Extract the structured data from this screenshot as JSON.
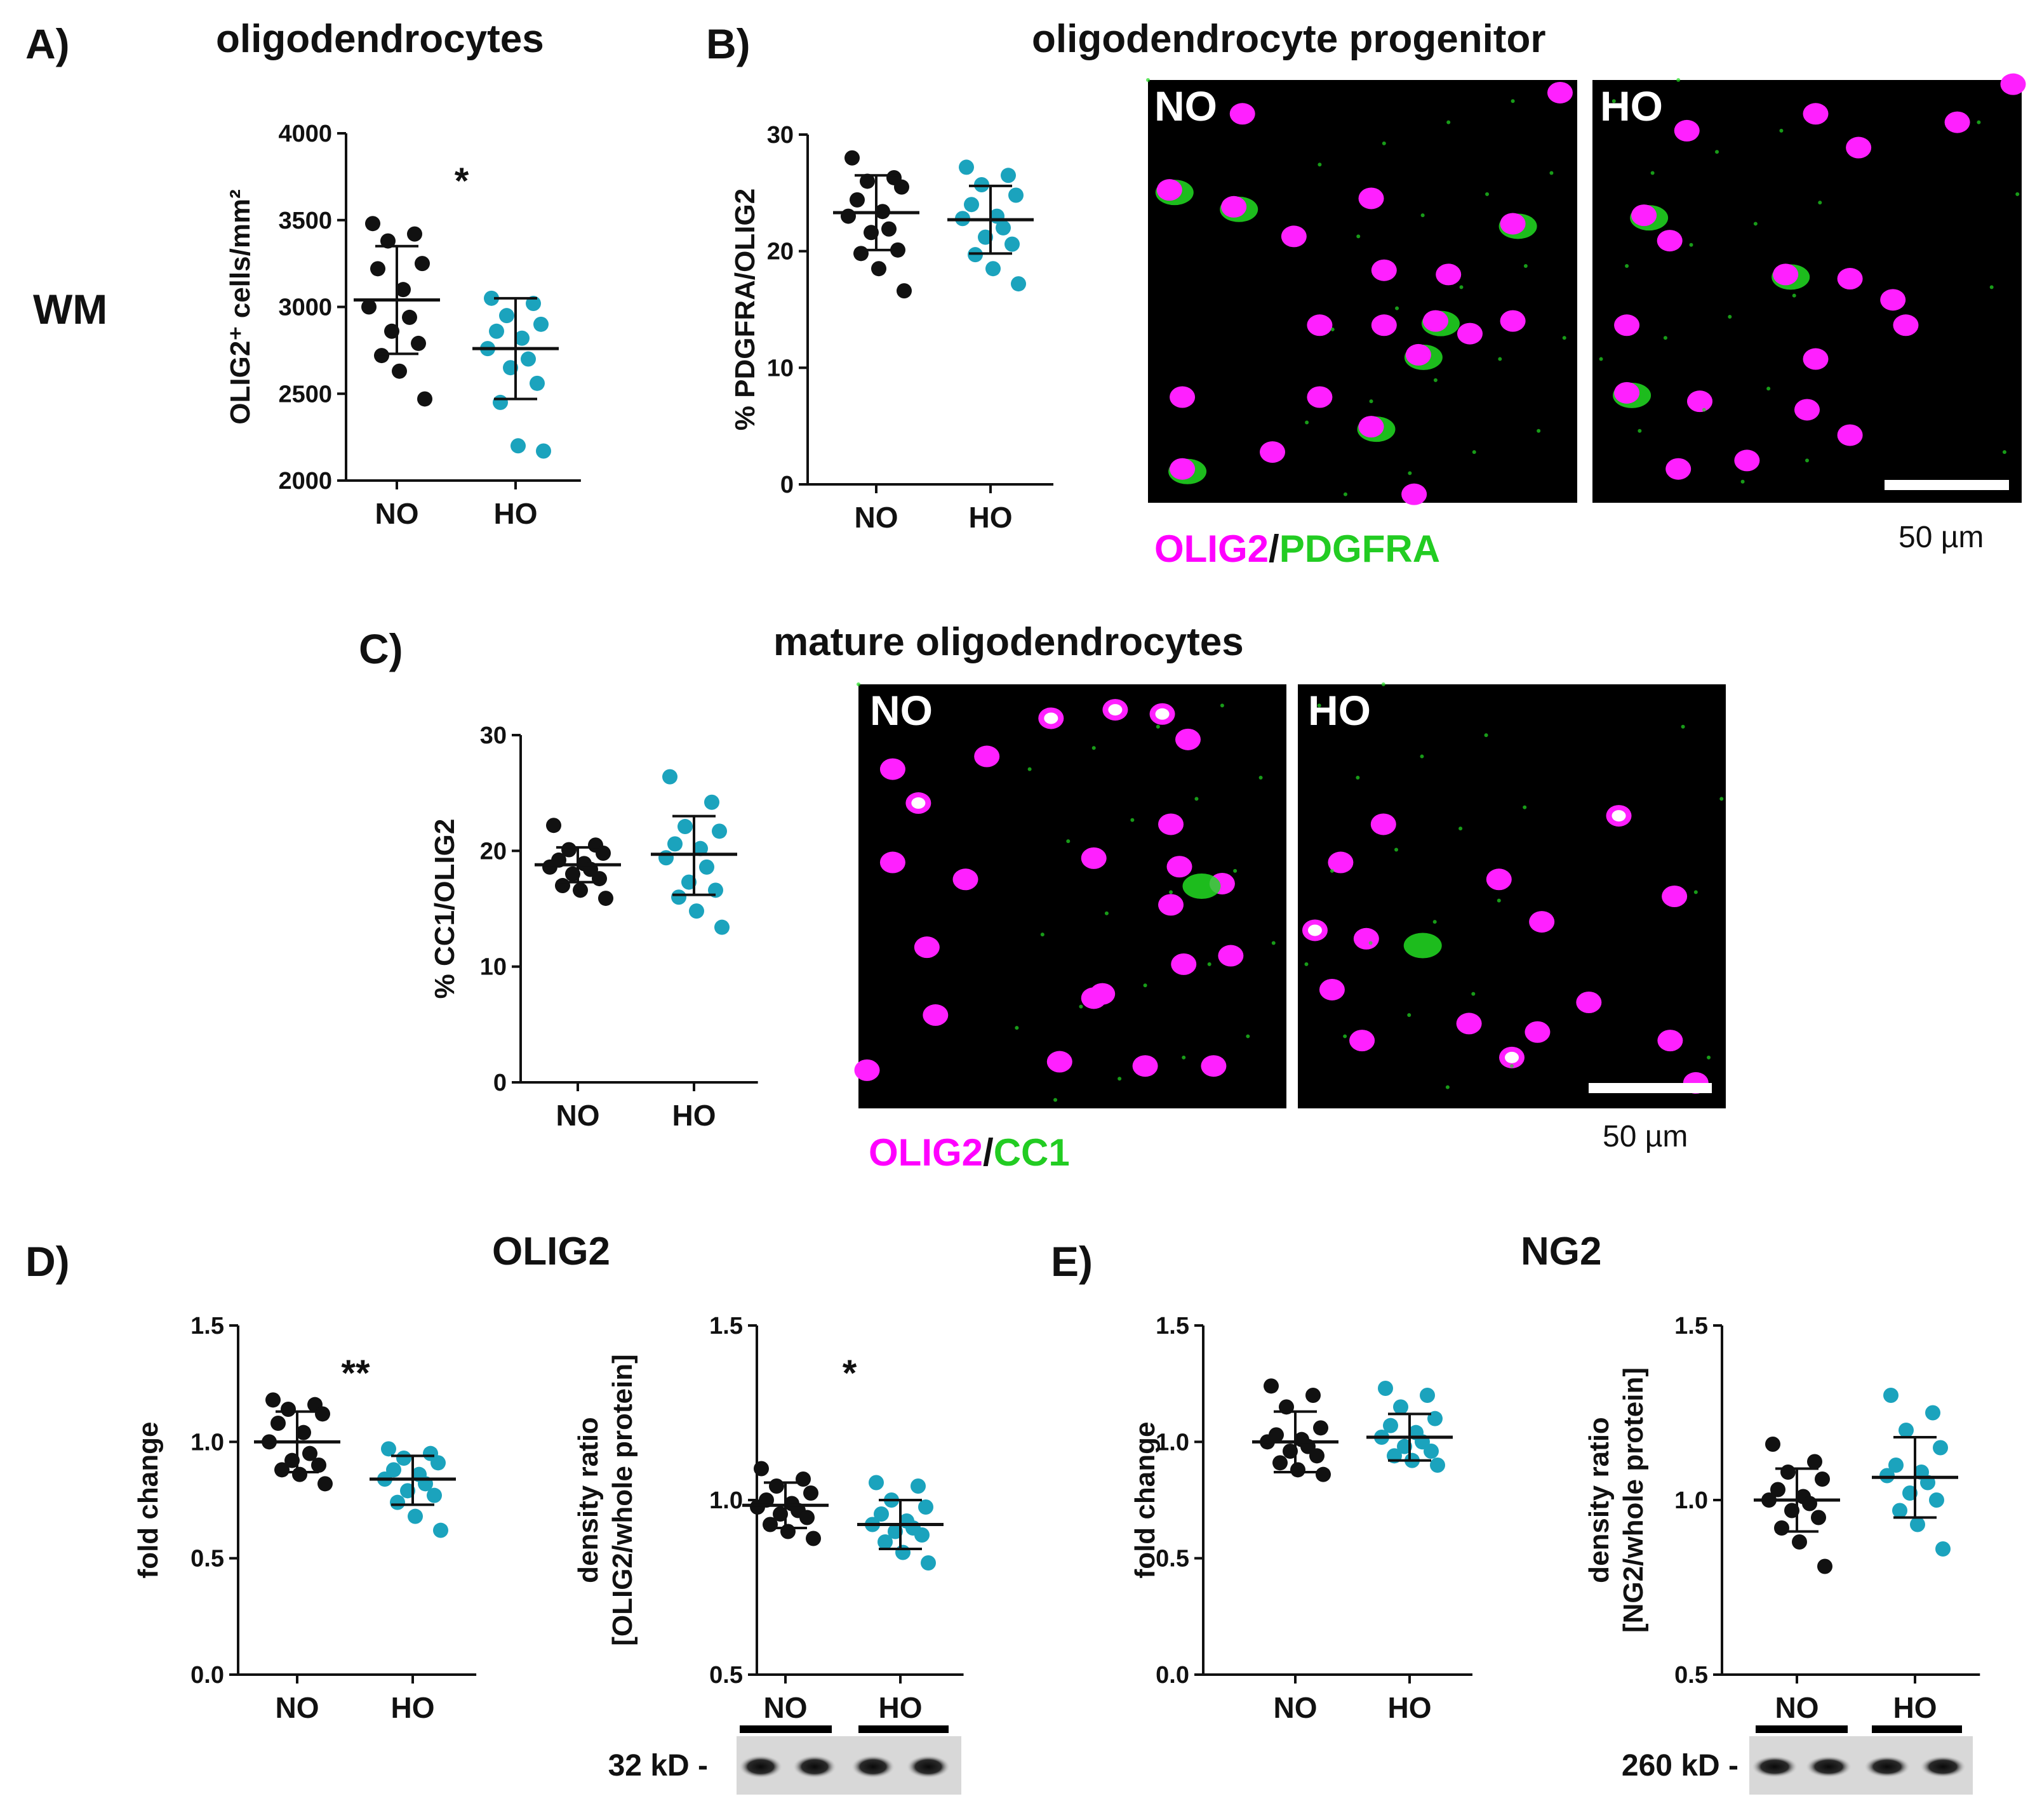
{
  "panels": {
    "A": {
      "label": "A)",
      "title": "oligodendrocytes",
      "region": "WM"
    },
    "B": {
      "label": "B)",
      "title": "oligodendrocyte progenitor"
    },
    "C": {
      "label": "C)",
      "title": "mature oligodendrocytes"
    },
    "D": {
      "label": "D)",
      "title": "OLIG2"
    },
    "E": {
      "label": "E)",
      "title": "NG2"
    }
  },
  "micrographs": {
    "B": {
      "left_label": "NO",
      "right_label": "HO",
      "scale_label": "50 µm",
      "legend": {
        "marker1": "OLIG2",
        "sep": "/",
        "marker2": "PDGFRA"
      }
    },
    "C": {
      "left_label": "NO",
      "right_label": "HO",
      "scale_label": "50 µm",
      "legend": {
        "marker1": "OLIG2",
        "sep": "/",
        "marker2": "CC1"
      }
    }
  },
  "blots": {
    "D": {
      "label": "32 kD -"
    },
    "E": {
      "label": "260 kD -"
    }
  },
  "colors": {
    "NO": "#111111",
    "HO": "#1ba3bd",
    "magenta": "#ff20ff",
    "green": "#22dd22",
    "olig2_text": "#ff00ff",
    "marker_text": "#22cc22"
  },
  "chart_data": [
    {
      "id": "A",
      "type": "scatter",
      "ylabel": "OLIG2⁺ cells/mm²",
      "ylim": [
        2000,
        4000
      ],
      "yticks": [
        "2000",
        "2500",
        "3000",
        "3500",
        "4000"
      ],
      "categories": [
        "NO",
        "HO"
      ],
      "significance": "*",
      "series": [
        {
          "name": "NO",
          "mean": 3040,
          "sd_upper": 3350,
          "sd_lower": 2730,
          "values": [
            3480,
            3420,
            3380,
            3250,
            3220,
            3100,
            3000,
            2940,
            2860,
            2790,
            2720,
            2630,
            2470
          ]
        },
        {
          "name": "HO",
          "mean": 2760,
          "sd_upper": 3050,
          "sd_lower": 2470,
          "values": [
            3050,
            3020,
            2950,
            2900,
            2860,
            2820,
            2760,
            2700,
            2650,
            2560,
            2450,
            2200,
            2170
          ]
        }
      ]
    },
    {
      "id": "B",
      "type": "scatter",
      "ylabel": "% PDGFRA/OLIG2",
      "ylim": [
        0,
        30
      ],
      "yticks": [
        "0",
        "10",
        "20",
        "30"
      ],
      "categories": [
        "NO",
        "HO"
      ],
      "significance": "",
      "series": [
        {
          "name": "NO",
          "mean": 23.3,
          "sd_upper": 26.5,
          "sd_lower": 20.1,
          "values": [
            28.0,
            26.3,
            26.0,
            25.5,
            24.4,
            23.4,
            23.0,
            21.9,
            21.6,
            20.1,
            19.8,
            18.5,
            16.6
          ]
        },
        {
          "name": "HO",
          "mean": 22.7,
          "sd_upper": 25.6,
          "sd_lower": 19.8,
          "values": [
            27.2,
            26.5,
            25.7,
            24.8,
            24.0,
            23.0,
            22.8,
            22.0,
            21.2,
            20.6,
            19.7,
            18.5,
            17.2
          ]
        }
      ]
    },
    {
      "id": "C",
      "type": "scatter",
      "ylabel": "% CC1/OLIG2",
      "ylim": [
        0,
        30
      ],
      "yticks": [
        "0",
        "10",
        "20",
        "30"
      ],
      "categories": [
        "NO",
        "HO"
      ],
      "significance": "",
      "series": [
        {
          "name": "NO",
          "mean": 18.8,
          "sd_upper": 20.3,
          "sd_lower": 17.3,
          "values": [
            22.2,
            20.5,
            20.1,
            19.8,
            19.2,
            18.9,
            18.6,
            18.4,
            18.0,
            17.6,
            17.0,
            16.6,
            15.9
          ]
        },
        {
          "name": "HO",
          "mean": 19.7,
          "sd_upper": 23.0,
          "sd_lower": 16.2,
          "values": [
            26.4,
            24.2,
            22.1,
            21.7,
            20.6,
            20.2,
            19.4,
            18.6,
            17.3,
            16.6,
            16.0,
            14.8,
            13.4
          ]
        }
      ]
    },
    {
      "id": "D1",
      "type": "scatter",
      "ylabel": "fold change",
      "ylim": [
        0.0,
        1.5
      ],
      "yticks": [
        "0.0",
        "0.5",
        "1.0",
        "1.5"
      ],
      "categories": [
        "NO",
        "HO"
      ],
      "significance": "**",
      "series": [
        {
          "name": "NO",
          "mean": 1.0,
          "sd_upper": 1.13,
          "sd_lower": 0.87,
          "values": [
            1.18,
            1.16,
            1.14,
            1.12,
            1.08,
            1.04,
            1.0,
            0.95,
            0.92,
            0.9,
            0.88,
            0.86,
            0.82
          ]
        },
        {
          "name": "HO",
          "mean": 0.84,
          "sd_upper": 0.94,
          "sd_lower": 0.73,
          "values": [
            0.97,
            0.95,
            0.93,
            0.91,
            0.88,
            0.86,
            0.84,
            0.82,
            0.79,
            0.77,
            0.74,
            0.68,
            0.62
          ]
        }
      ]
    },
    {
      "id": "D2",
      "type": "scatter",
      "ylabel": "density ratio\n[OLIG2/whole protein]",
      "ylim": [
        0.5,
        1.5
      ],
      "yticks": [
        "0.5",
        "1.0",
        "1.5"
      ],
      "categories": [
        "NO",
        "HO"
      ],
      "significance": "*",
      "series": [
        {
          "name": "NO",
          "mean": 0.985,
          "sd_upper": 1.05,
          "sd_lower": 0.92,
          "values": [
            1.09,
            1.06,
            1.04,
            1.02,
            1.0,
            0.99,
            0.98,
            0.97,
            0.96,
            0.95,
            0.93,
            0.91,
            0.89
          ]
        },
        {
          "name": "HO",
          "mean": 0.93,
          "sd_upper": 1.0,
          "sd_lower": 0.86,
          "values": [
            1.05,
            1.04,
            1.0,
            0.98,
            0.96,
            0.94,
            0.93,
            0.92,
            0.91,
            0.9,
            0.88,
            0.85,
            0.82
          ]
        }
      ]
    },
    {
      "id": "E1",
      "type": "scatter",
      "ylabel": "fold change",
      "ylim": [
        0.0,
        1.5
      ],
      "yticks": [
        "0.0",
        "0.5",
        "1.0",
        "1.5"
      ],
      "categories": [
        "NO",
        "HO"
      ],
      "significance": "",
      "series": [
        {
          "name": "NO",
          "mean": 1.0,
          "sd_upper": 1.13,
          "sd_lower": 0.87,
          "values": [
            1.24,
            1.2,
            1.15,
            1.06,
            1.03,
            1.01,
            1.0,
            0.98,
            0.96,
            0.94,
            0.91,
            0.88,
            0.86
          ]
        },
        {
          "name": "HO",
          "mean": 1.02,
          "sd_upper": 1.12,
          "sd_lower": 0.92,
          "values": [
            1.23,
            1.2,
            1.15,
            1.1,
            1.07,
            1.04,
            1.02,
            1.0,
            0.98,
            0.96,
            0.94,
            0.92,
            0.9
          ]
        }
      ]
    },
    {
      "id": "E2",
      "type": "scatter",
      "ylabel": "density ratio\n[NG2/whole protein]",
      "ylim": [
        0.5,
        1.5
      ],
      "yticks": [
        "0.5",
        "1.0",
        "1.5"
      ],
      "categories": [
        "NO",
        "HO"
      ],
      "significance": "",
      "series": [
        {
          "name": "NO",
          "mean": 1.0,
          "sd_upper": 1.09,
          "sd_lower": 0.91,
          "values": [
            1.16,
            1.11,
            1.08,
            1.06,
            1.03,
            1.01,
            1.0,
            0.99,
            0.97,
            0.95,
            0.92,
            0.88,
            0.81
          ]
        },
        {
          "name": "HO",
          "mean": 1.065,
          "sd_upper": 1.18,
          "sd_lower": 0.95,
          "values": [
            1.3,
            1.25,
            1.2,
            1.15,
            1.1,
            1.08,
            1.07,
            1.05,
            1.02,
            1.0,
            0.97,
            0.93,
            0.86
          ]
        }
      ]
    }
  ]
}
